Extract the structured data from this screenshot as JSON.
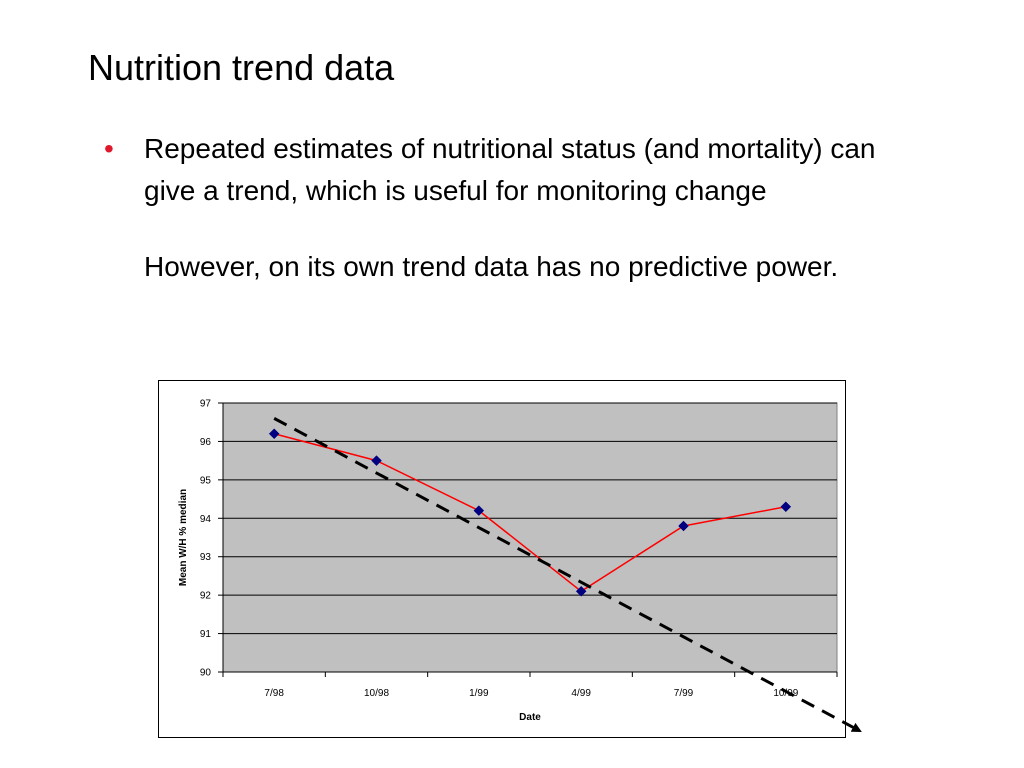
{
  "slide": {
    "title": "Nutrition trend data",
    "bullet_marker": "•",
    "bullet_text": "Repeated estimates of nutritional status (and mortality) can give a trend, which is useful for monitoring change",
    "paragraph": "However, on its own trend data has no predictive power."
  },
  "colors": {
    "bullet": "#e0182b",
    "plot_background": "#c0c0c0",
    "gridline": "#000000",
    "series_line": "#ff0000",
    "marker": "#000080",
    "trend_line": "#000000"
  },
  "chart_data": {
    "type": "line",
    "title": "",
    "xlabel": "Date",
    "ylabel": "Mean W/H % median",
    "categories": [
      "7/98",
      "10/98",
      "1/99",
      "4/99",
      "7/99",
      "10/99"
    ],
    "series": [
      {
        "values": [
          96.2,
          95.5,
          94.2,
          92.1,
          93.8,
          94.3
        ]
      }
    ],
    "ylim": [
      90,
      97
    ],
    "yticks": [
      90,
      91,
      92,
      93,
      94,
      95,
      96,
      97
    ],
    "grid": true,
    "legend": "none",
    "trend_line": {
      "style": "dashed-arrow",
      "start": {
        "x": 0,
        "y": 96.6
      },
      "end": {
        "x": 5.7,
        "y": 88.5
      }
    }
  }
}
